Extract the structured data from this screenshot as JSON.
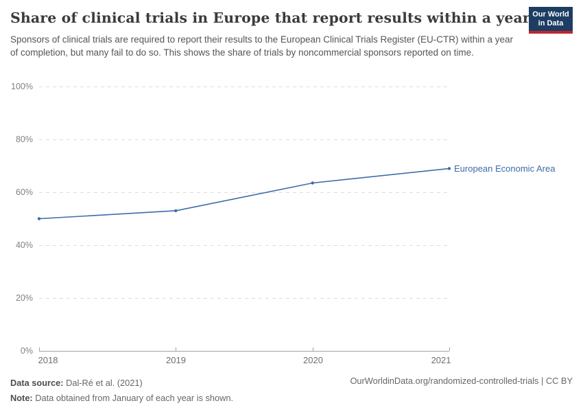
{
  "header": {
    "title": "Share of clinical trials in Europe that report results within a year",
    "subtitle": "Sponsors of clinical trials are required to report their results to the European Clinical Trials Register (EU-CTR) within a year of completion, but many fail to do so. This shows the share of trials by noncommercial sponsors reported on time.",
    "logo_line1": "Our World",
    "logo_line2": "in Data"
  },
  "chart_data": {
    "type": "line",
    "title": "Share of clinical trials in Europe that report results within a year",
    "x": [
      2018,
      2019,
      2020,
      2021
    ],
    "x_ticks": [
      "2018",
      "2019",
      "2020",
      "2021"
    ],
    "y_ticks": [
      "0%",
      "20%",
      "40%",
      "60%",
      "80%",
      "100%"
    ],
    "ylim": [
      0,
      100
    ],
    "xlabel": "",
    "ylabel": "",
    "grid": "horizontal-dashed",
    "legend_position": "end-of-line",
    "series": [
      {
        "name": "European Economic Area",
        "values": [
          50,
          53,
          63.5,
          69
        ],
        "color": "#3d6ba8",
        "markers": true
      }
    ]
  },
  "footer": {
    "data_source_label": "Data source:",
    "data_source_value": "Dal-Ré et al. (2021)",
    "note_label": "Note:",
    "note_value": "Data obtained from January of each year is shown.",
    "attribution": "OurWorldinData.org/randomized-controlled-trials | CC BY"
  },
  "colors": {
    "line": "#3d6ba8",
    "gridline": "#dcdcdc",
    "axis": "#a1a1a1",
    "logo_bg": "#1d3d63",
    "logo_accent": "#c0272d"
  }
}
